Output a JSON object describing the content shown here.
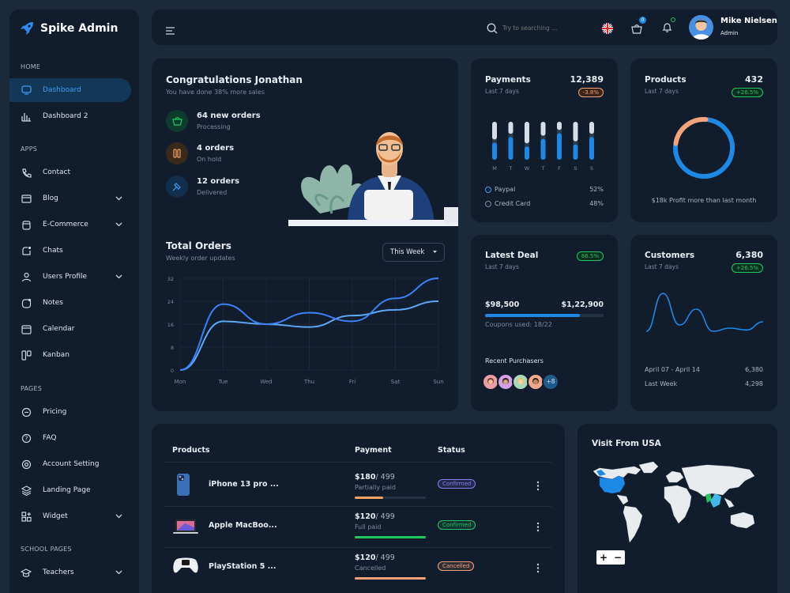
{
  "app": {
    "name": "Spike Admin"
  },
  "sidebar": {
    "sections": {
      "home": "HOME",
      "apps": "APPS",
      "pages": "PAGES",
      "school": "SCHOOL PAGES"
    },
    "items": [
      {
        "label": "Dashboard"
      },
      {
        "label": "Dashboard 2"
      },
      {
        "label": "Contact"
      },
      {
        "label": "Blog"
      },
      {
        "label": "E-Commerce"
      },
      {
        "label": "Chats"
      },
      {
        "label": "Users Profile"
      },
      {
        "label": "Notes"
      },
      {
        "label": "Calendar"
      },
      {
        "label": "Kanban"
      },
      {
        "label": "Pricing"
      },
      {
        "label": "FAQ"
      },
      {
        "label": "Account Setting"
      },
      {
        "label": "Landing Page"
      },
      {
        "label": "Widget"
      },
      {
        "label": "Teachers"
      }
    ]
  },
  "header": {
    "search_placeholder": "Try to searching ...",
    "cart_count": "0",
    "user": {
      "name": "Mike Nielsen",
      "role": "Admin"
    }
  },
  "congrats": {
    "title": "Congratulations Jonathan",
    "subtitle": "You have done 38% more sales",
    "stats": [
      {
        "value": "64 new orders",
        "label": "Processing"
      },
      {
        "value": "4 orders",
        "label": "On hold"
      },
      {
        "value": "12 orders",
        "label": "Delivered"
      }
    ]
  },
  "orders": {
    "title": "Total Orders",
    "subtitle": "Weekly order updates",
    "filter": "This Week",
    "chart_data": {
      "type": "line",
      "categories": [
        "Mon",
        "Tue",
        "Wed",
        "Thu",
        "Fri",
        "Sat",
        "Sun"
      ],
      "y_ticks": [
        "32",
        "24",
        "16",
        "8",
        "0"
      ],
      "ylim": [
        0,
        32
      ],
      "grid": true,
      "series": [
        {
          "color": "#5fa8f5",
          "values": [
            0,
            17,
            16,
            15,
            19,
            21,
            24
          ]
        },
        {
          "color": "#3b82f6",
          "values": [
            0,
            23,
            16,
            20,
            17,
            25,
            32
          ]
        }
      ]
    }
  },
  "payments": {
    "title": "Payments",
    "value": "12,389",
    "period": "Last 7 days",
    "change": "-3.8%",
    "chart_data": {
      "type": "bar",
      "categories": [
        "M",
        "T",
        "W",
        "T",
        "F",
        "S",
        "S"
      ],
      "values": [
        45,
        60,
        35,
        55,
        70,
        40,
        60
      ]
    },
    "legend": [
      {
        "name": "Paypal",
        "value": "52%"
      },
      {
        "name": "Credit Card",
        "value": "48%"
      }
    ]
  },
  "products_card": {
    "title": "Products",
    "value": "432",
    "period": "Last 7 days",
    "change": "+26.5%",
    "caption": "$18k Profit more than last month",
    "chart_data": {
      "type": "pie",
      "values": [
        75,
        25
      ],
      "colors": [
        "#1e88e5",
        "#f4a27a"
      ]
    }
  },
  "deal": {
    "title": "Latest Deal",
    "period": "Last 7 days",
    "change": "86.5%",
    "amount": "$98,500",
    "target": "$1,22,900",
    "progress": 0.8,
    "coupons": "Coupons used: 18/22",
    "purchasers_label": "Recent Purchasers",
    "more": "+8"
  },
  "customers": {
    "title": "Customers",
    "value": "6,380",
    "period": "Last 7 days",
    "change": "+26.5%",
    "chart_data": {
      "type": "line",
      "values": [
        10,
        70,
        20,
        45,
        10,
        15,
        12,
        25
      ]
    },
    "rows": [
      {
        "label": "April 07 - April 14",
        "value": "6,380"
      },
      {
        "label": "Last Week",
        "value": "4,298"
      }
    ]
  },
  "table": {
    "headers": [
      "Products",
      "Payment",
      "Status"
    ],
    "rows": [
      {
        "name": "iPhone 13 pro ...",
        "price": "$180",
        "total": "/ 499",
        "pay_status": "Partially paid",
        "status": "Confirmed",
        "status_color": "#8b7cf6",
        "bar_color": "#f4a261",
        "progress": 0.4
      },
      {
        "name": "Apple MacBoo...",
        "price": "$120",
        "total": "/ 499",
        "pay_status": "Full paid",
        "status": "Confirmed",
        "status_color": "#22c55e",
        "bar_color": "#22c55e",
        "progress": 1
      },
      {
        "name": "PlayStation 5 ...",
        "price": "$120",
        "total": "/ 499",
        "pay_status": "Cancelled",
        "status": "Cancelled",
        "status_color": "#f4a27a",
        "bar_color": "#f4a27a",
        "progress": 1
      }
    ]
  },
  "map": {
    "title": "Visit From USA",
    "zoom_in": "+",
    "zoom_out": "−"
  }
}
